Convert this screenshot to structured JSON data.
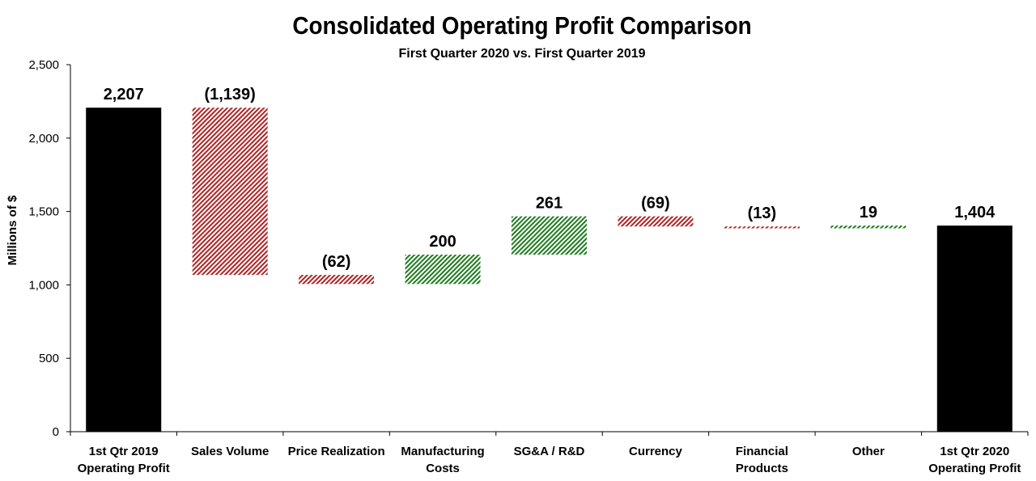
{
  "chart_data": {
    "type": "waterfall",
    "title": "Consolidated Operating Profit Comparison",
    "subtitle": "First Quarter 2020 vs. First Quarter 2019",
    "ylabel": "Millions of $",
    "ylim": [
      0,
      2500
    ],
    "yticks": [
      "0",
      "500",
      "1,000",
      "1,500",
      "2,000",
      "2,500"
    ],
    "grid": false,
    "categories": [
      [
        "1st Qtr 2019",
        "Operating Profit"
      ],
      [
        "Sales Volume"
      ],
      [
        "Price Realization"
      ],
      [
        "Manufacturing",
        "Costs"
      ],
      [
        "SG&A / R&D"
      ],
      [
        "Currency"
      ],
      [
        "Financial",
        "Products"
      ],
      [
        "Other"
      ],
      [
        "1st Qtr 2020",
        "Operating Profit"
      ]
    ],
    "values": [
      2207,
      -1139,
      -62,
      200,
      261,
      -69,
      -13,
      19,
      1404
    ],
    "kinds": [
      "total",
      "delta",
      "delta",
      "delta",
      "delta",
      "delta",
      "delta",
      "delta",
      "total"
    ],
    "labels": [
      "2,207",
      "(1,139)",
      "(62)",
      "200",
      "261",
      "(69)",
      "(13)",
      "19",
      "1,404"
    ],
    "colors": {
      "total": "#000000",
      "decrease": "#b22222",
      "increase": "#1e7b1e"
    }
  }
}
